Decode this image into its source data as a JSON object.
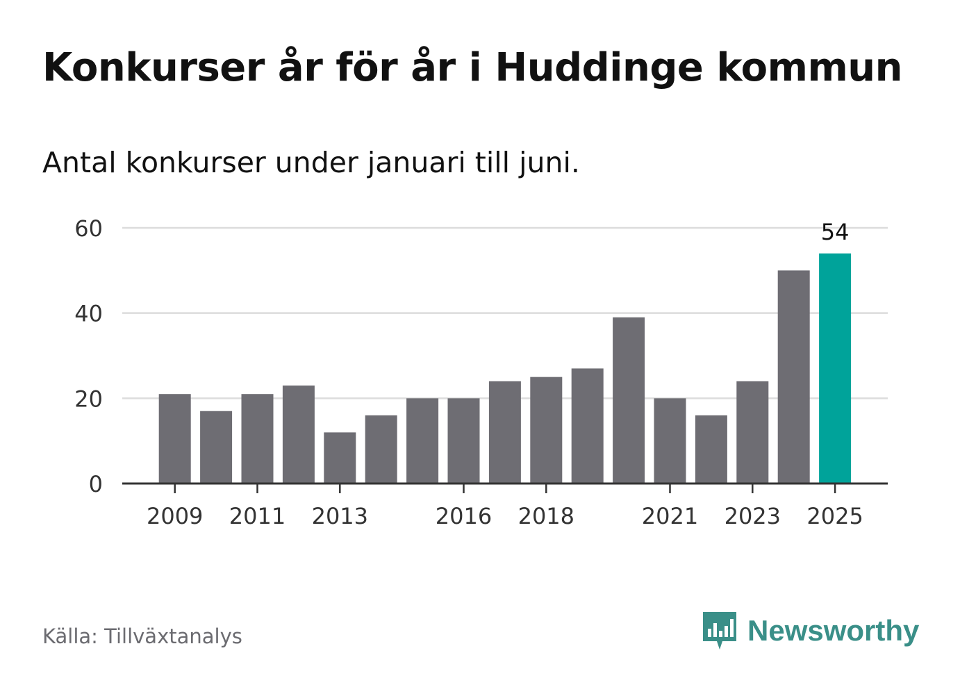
{
  "title": "Konkurser år för år i Huddinge kommun",
  "subtitle": "Antal konkurser under januari till juni.",
  "source": "Källa: Tillväxtanalys",
  "brand": {
    "name": "Newsworthy",
    "icon": "newsworthy-logo-icon"
  },
  "colors": {
    "bar": "#6e6d73",
    "highlight": "#00a39a",
    "grid": "#dcdcdc",
    "axis": "#333333",
    "brand": "#3a8f88"
  },
  "chart_data": {
    "type": "bar",
    "title": "Konkurser år för år i Huddinge kommun",
    "subtitle": "Antal konkurser under januari till juni.",
    "categories": [
      "2009",
      "2010",
      "2011",
      "2012",
      "2013",
      "2014",
      "2015",
      "2016",
      "2017",
      "2018",
      "2019",
      "2020",
      "2021",
      "2022",
      "2023",
      "2024",
      "2025"
    ],
    "x_tick_labels": [
      "2009",
      "2011",
      "2013",
      "2016",
      "2018",
      "2021",
      "2023",
      "2025"
    ],
    "values": [
      21,
      17,
      21,
      23,
      12,
      16,
      20,
      20,
      24,
      25,
      27,
      39,
      20,
      16,
      24,
      50,
      54
    ],
    "highlight": {
      "category": "2025",
      "label": "54"
    },
    "ylim": [
      0,
      60
    ],
    "y_ticks": [
      0,
      20,
      40,
      60
    ],
    "grid": true
  }
}
